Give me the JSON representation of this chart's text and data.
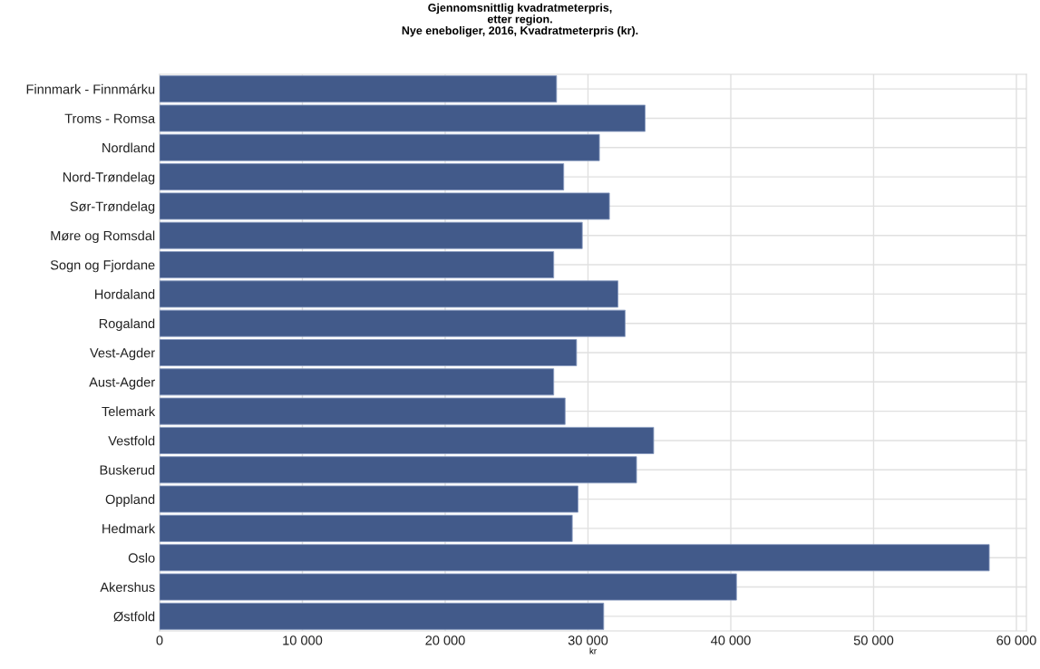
{
  "chart_data": {
    "type": "bar",
    "orientation": "horizontal",
    "title": "Gjennomsnittlig kvadratmeterpris,\netter region.\nNye eneboliger, 2016, Kvadratmeterpris (kr).",
    "xlabel": "kr",
    "categories": [
      "Finnmark - Finnmárku",
      "Troms - Romsa",
      "Nordland",
      "Nord-Trøndelag",
      "Sør-Trøndelag",
      "Møre og Romsdal",
      "Sogn og Fjordane",
      "Hordaland",
      "Rogaland",
      "Vest-Agder",
      "Aust-Agder",
      "Telemark",
      "Vestfold",
      "Buskerud",
      "Oppland",
      "Hedmark",
      "Oslo",
      "Akershus",
      "Østfold"
    ],
    "values": [
      27800,
      34000,
      30800,
      28300,
      31500,
      29600,
      27600,
      32100,
      32600,
      29200,
      27600,
      28400,
      34600,
      33400,
      29300,
      28900,
      58100,
      40400,
      31100
    ],
    "color": "#425a8a",
    "xlim": [
      0,
      60700
    ],
    "xticks": [
      {
        "value": 0,
        "label": "0"
      },
      {
        "value": 10000,
        "label": "10 000"
      },
      {
        "value": 20000,
        "label": "20 000"
      },
      {
        "value": 30000,
        "label": "30 000"
      },
      {
        "value": 40000,
        "label": "40 000"
      },
      {
        "value": 50000,
        "label": "50 000"
      },
      {
        "value": 60000,
        "label": "60 000"
      }
    ],
    "grid": true
  }
}
